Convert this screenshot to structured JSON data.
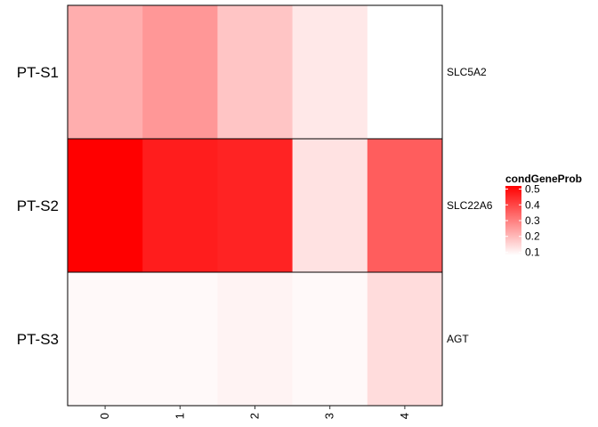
{
  "chart_data": {
    "type": "heatmap",
    "x_categories": [
      "0",
      "1",
      "2",
      "3",
      "4"
    ],
    "row_groups": [
      "PT-S1",
      "PT-S2",
      "PT-S3"
    ],
    "genes": [
      "SLC5A2",
      "SLC22A6",
      "AGT"
    ],
    "values": [
      [
        0.22,
        0.26,
        0.18,
        0.12,
        0.08
      ],
      [
        0.52,
        0.47,
        0.46,
        0.13,
        0.36
      ],
      [
        0.09,
        0.09,
        0.1,
        0.09,
        0.14
      ]
    ],
    "legend": {
      "title": "condGeneProb",
      "ticks": [
        0.1,
        0.2,
        0.3,
        0.4,
        0.5
      ],
      "range": [
        0.08,
        0.52
      ],
      "low_color": "#ffffff",
      "high_color": "#ff0000",
      "placement": "right"
    },
    "title": "",
    "xlabel": "",
    "ylabel": ""
  }
}
